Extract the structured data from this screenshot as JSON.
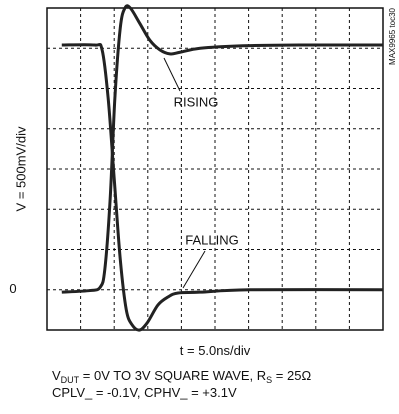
{
  "chart_data": {
    "type": "line",
    "y_label": "V = 500mV/div",
    "x_label": "t = 5.0ns/div",
    "side_note": "MAX9965 toc30",
    "notes": [
      [
        {
          "text": "V"
        },
        {
          "text": "DUT",
          "sub": true
        },
        {
          "text": " = 0V TO 3V SQUARE WAVE, R"
        },
        {
          "text": "S",
          "sub": true
        },
        {
          "text": " = 25Ω"
        }
      ],
      [
        {
          "text": "CPLV_ = -0.1V, CPHV_ = +3.1V"
        }
      ]
    ],
    "xlim": [
      0,
      50
    ],
    "ylim": [
      -0.5,
      3.5
    ],
    "xgrid": [
      5,
      10,
      15,
      20,
      25,
      30,
      35,
      40,
      45
    ],
    "ygrid": [
      0,
      0.5,
      1,
      1.5,
      2,
      2.5,
      3
    ],
    "yticks": [
      0
    ],
    "series": [
      {
        "name": "RISING",
        "color": "#222222",
        "x": [
          2.2,
          6.4,
          7.9,
          8.6,
          9.4,
          10.1,
          10.9,
          11.6,
          12.4,
          13.8,
          15.3,
          16.8,
          18.3,
          19.8,
          22.8,
          28.7,
          37.6,
          50
        ],
        "values": [
          -0.03,
          -0.01,
          0.03,
          0.25,
          1.13,
          2.38,
          3.25,
          3.5,
          3.5,
          3.31,
          3.1,
          2.98,
          2.93,
          2.95,
          3.0,
          3.03,
          3.04,
          3.04
        ]
      },
      {
        "name": "FALLING",
        "color": "#222222",
        "x": [
          2.2,
          7.1,
          8.2,
          9.1,
          10.0,
          10.9,
          11.8,
          12.7,
          13.8,
          15.0,
          16.5,
          18.0,
          19.5,
          22.8,
          30.2,
          50
        ],
        "values": [
          3.04,
          3.04,
          2.98,
          2.38,
          1.38,
          0.38,
          -0.25,
          -0.44,
          -0.5,
          -0.4,
          -0.19,
          -0.09,
          -0.04,
          -0.03,
          0,
          0
        ]
      }
    ]
  }
}
